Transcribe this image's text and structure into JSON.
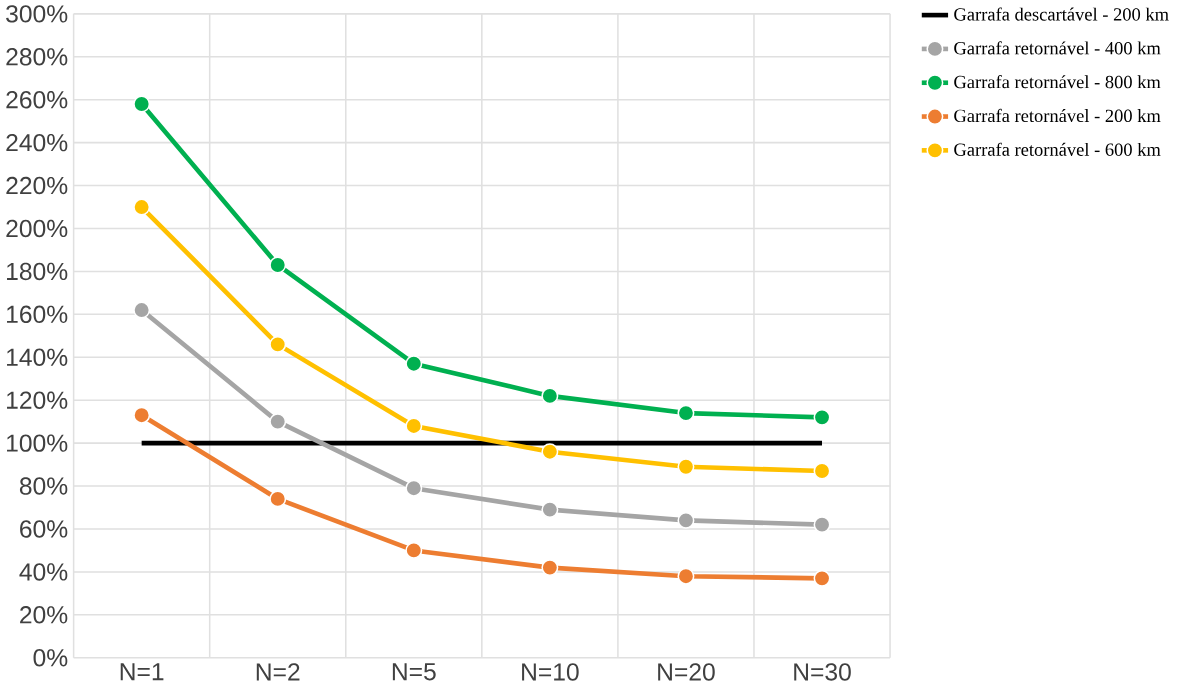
{
  "chart_data": {
    "type": "line",
    "categories": [
      "N=1",
      "N=2",
      "N=5",
      "N=10",
      "N=20",
      "N=30"
    ],
    "series": [
      {
        "name": "Garrafa descartável - 200 km",
        "color": "#000000",
        "marker": "none",
        "values": [
          100,
          100,
          100,
          100,
          100,
          100
        ]
      },
      {
        "name": "Garrafa retornável - 400 km",
        "color": "#a5a5a5",
        "marker": "circle",
        "values": [
          162,
          110,
          79,
          69,
          64,
          62
        ]
      },
      {
        "name": "Garrafa retornável - 800 km",
        "color": "#00b050",
        "marker": "circle",
        "values": [
          258,
          183,
          137,
          122,
          114,
          112
        ]
      },
      {
        "name": "Garrafa retornável - 200 km",
        "color": "#ed7d31",
        "marker": "circle",
        "values": [
          113,
          74,
          50,
          42,
          38,
          37
        ]
      },
      {
        "name": "Garrafa retornável - 600 km",
        "color": "#ffc000",
        "marker": "circle",
        "values": [
          210,
          146,
          108,
          96,
          89,
          87
        ]
      }
    ],
    "ylim": [
      0,
      300
    ],
    "yticks": [
      {
        "value": 0,
        "label": "0%"
      },
      {
        "value": 20,
        "label": "20%"
      },
      {
        "value": 40,
        "label": "40%"
      },
      {
        "value": 60,
        "label": "60%"
      },
      {
        "value": 80,
        "label": "80%"
      },
      {
        "value": 100,
        "label": "100%"
      },
      {
        "value": 120,
        "label": "120%"
      },
      {
        "value": 140,
        "label": "140%"
      },
      {
        "value": 160,
        "label": "160%"
      },
      {
        "value": 180,
        "label": "180%"
      },
      {
        "value": 200,
        "label": "200%"
      },
      {
        "value": 220,
        "label": "220%"
      },
      {
        "value": 240,
        "label": "240%"
      },
      {
        "value": 260,
        "label": "260%"
      },
      {
        "value": 280,
        "label": "280%"
      },
      {
        "value": 300,
        "label": "300%"
      }
    ],
    "grid": true,
    "legend": "top right",
    "line_style": "solid"
  }
}
